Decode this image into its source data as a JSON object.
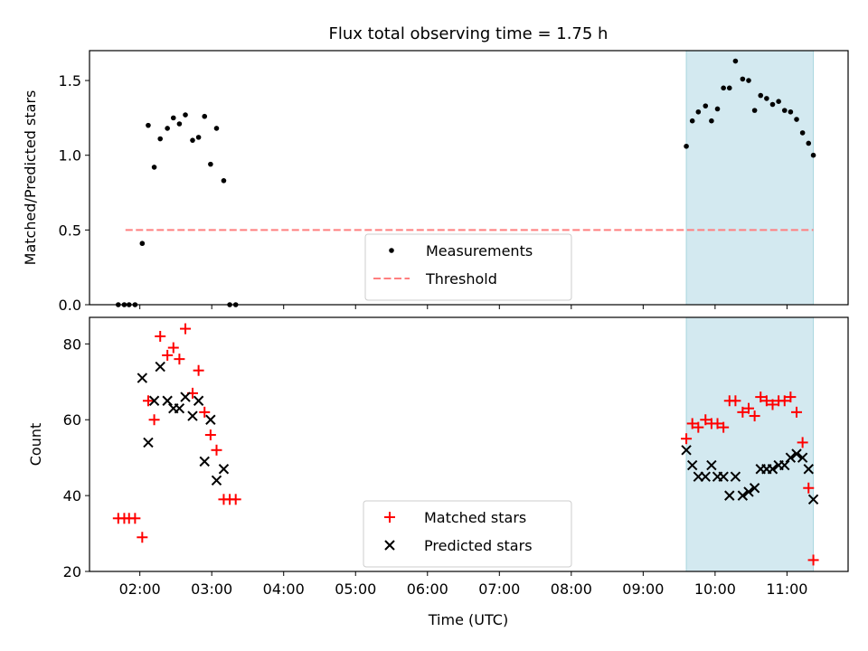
{
  "title": "Flux total observing time = 1.75 h",
  "xlabel": "Time (UTC)",
  "xticks": [
    "02:00",
    "03:00",
    "04:00",
    "05:00",
    "06:00",
    "07:00",
    "08:00",
    "09:00",
    "10:00",
    "11:00"
  ],
  "chart_data": [
    {
      "type": "scatter",
      "ylabel": "Matched/Predicted stars",
      "ylim": [
        0,
        1.7
      ],
      "yticks": [
        "0.0",
        "0.5",
        "1.0",
        "1.5"
      ],
      "xlim": [
        "01:18",
        "11:51"
      ],
      "shaded_region": {
        "start": "09:36",
        "end": "11:22",
        "color": "#d3e9f0"
      },
      "legend_position": "lower-center",
      "series": [
        {
          "name": "Measurements",
          "marker": "dot",
          "color": "#000000",
          "x": [
            "01:42",
            "01:47",
            "01:51",
            "01:56",
            "02:02",
            "02:07",
            "02:12",
            "02:17",
            "02:23",
            "02:28",
            "02:33",
            "02:38",
            "02:44",
            "02:49",
            "02:54",
            "02:59",
            "03:04",
            "03:10",
            "03:15",
            "03:20",
            "09:36",
            "09:41",
            "09:46",
            "09:52",
            "09:57",
            "10:02",
            "10:07",
            "10:12",
            "10:17",
            "10:23",
            "10:28",
            "10:33",
            "10:38",
            "10:43",
            "10:48",
            "10:53",
            "10:58",
            "11:03",
            "11:08",
            "11:13",
            "11:18",
            "11:22"
          ],
          "y": [
            0.0,
            0.0,
            0.0,
            0.0,
            0.41,
            1.2,
            0.92,
            1.11,
            1.18,
            1.25,
            1.21,
            1.27,
            1.1,
            1.12,
            1.26,
            0.94,
            1.18,
            0.83,
            0.0,
            0.0,
            1.06,
            1.23,
            1.29,
            1.33,
            1.23,
            1.31,
            1.45,
            1.45,
            1.63,
            1.51,
            1.5,
            1.3,
            1.4,
            1.38,
            1.34,
            1.36,
            1.3,
            1.29,
            1.24,
            1.15,
            1.08,
            1.0
          ]
        },
        {
          "name": "Threshold",
          "style": "dashed",
          "color": "#ff7f7f",
          "x": [
            "01:48",
            "11:22"
          ],
          "y": [
            0.5,
            0.5
          ]
        }
      ]
    },
    {
      "type": "scatter",
      "ylabel": "Count",
      "ylim": [
        20,
        87
      ],
      "yticks": [
        "20",
        "40",
        "60",
        "80"
      ],
      "xlim": [
        "01:18",
        "11:51"
      ],
      "shaded_region": {
        "start": "09:36",
        "end": "11:22",
        "color": "#d3e9f0"
      },
      "legend_position": "lower-center",
      "series": [
        {
          "name": "Matched stars",
          "marker": "plus",
          "color": "#ff0000",
          "x": [
            "01:42",
            "01:47",
            "01:51",
            "01:56",
            "02:02",
            "02:07",
            "02:12",
            "02:17",
            "02:23",
            "02:28",
            "02:33",
            "02:38",
            "02:44",
            "02:49",
            "02:54",
            "02:59",
            "03:04",
            "03:10",
            "03:15",
            "03:20",
            "09:36",
            "09:41",
            "09:46",
            "09:52",
            "09:57",
            "10:02",
            "10:07",
            "10:12",
            "10:17",
            "10:23",
            "10:28",
            "10:33",
            "10:38",
            "10:43",
            "10:48",
            "10:53",
            "10:58",
            "11:03",
            "11:08",
            "11:13",
            "11:18",
            "11:22"
          ],
          "y": [
            34,
            34,
            34,
            34,
            29,
            65,
            60,
            82,
            77,
            79,
            76,
            84,
            67,
            73,
            62,
            56,
            52,
            39,
            39,
            39,
            55,
            59,
            58,
            60,
            59,
            59,
            58,
            65,
            65,
            62,
            63,
            61,
            66,
            65,
            64,
            65,
            65,
            66,
            62,
            54,
            42,
            23
          ]
        },
        {
          "name": "Predicted stars",
          "marker": "x",
          "color": "#000000",
          "x": [
            "02:02",
            "02:07",
            "02:12",
            "02:17",
            "02:23",
            "02:28",
            "02:33",
            "02:38",
            "02:44",
            "02:49",
            "02:54",
            "02:59",
            "03:04",
            "03:10",
            "09:36",
            "09:41",
            "09:46",
            "09:52",
            "09:57",
            "10:02",
            "10:07",
            "10:12",
            "10:17",
            "10:23",
            "10:28",
            "10:33",
            "10:38",
            "10:43",
            "10:48",
            "10:53",
            "10:58",
            "11:03",
            "11:08",
            "11:13",
            "11:18",
            "11:22"
          ],
          "y": [
            71,
            54,
            65,
            74,
            65,
            63,
            63,
            66,
            61,
            65,
            49,
            60,
            44,
            47,
            52,
            48,
            45,
            45,
            48,
            45,
            45,
            40,
            45,
            40,
            41,
            42,
            47,
            47,
            47,
            48,
            48,
            50,
            51,
            50,
            47,
            39
          ]
        }
      ]
    }
  ]
}
